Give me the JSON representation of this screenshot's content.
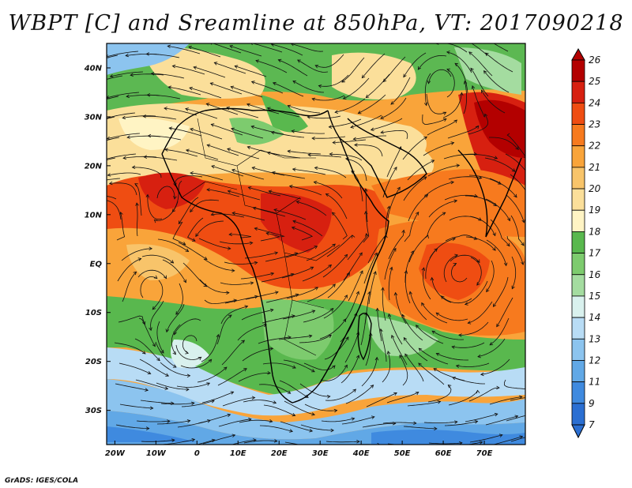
{
  "title": "WBPT [C] and Sreamline at 850hPa, VT: 2017090218",
  "credit": "GrADS: IGES/COLA",
  "axes": {
    "lon_labels": [
      "20W",
      "10W",
      "0",
      "10E",
      "20E",
      "30E",
      "40E",
      "50E",
      "60E",
      "70E"
    ],
    "lat_labels": [
      "40N",
      "30N",
      "20N",
      "10N",
      "EQ",
      "10S",
      "20S",
      "30S"
    ]
  },
  "colorbar": {
    "labels": [
      "26",
      "25",
      "24",
      "23",
      "22",
      "21",
      "20",
      "19",
      "18",
      "17",
      "16",
      "15",
      "14",
      "13",
      "12",
      "11",
      "9",
      "7"
    ],
    "colors": [
      "#b30000",
      "#d72010",
      "#ef4d12",
      "#f77a1e",
      "#f9a43a",
      "#f8c46a",
      "#fbdf9a",
      "#fff4c4",
      "#59b84e",
      "#7dcb6e",
      "#a4dca0",
      "#d9f1ee",
      "#b8dcf5",
      "#8cc4ef",
      "#61a8e6",
      "#3f8adf",
      "#2b6fd2"
    ]
  },
  "chart_data": {
    "type": "heatmap",
    "title": "WBPT [C] and Sreamline at 850hPa, VT: 2017090218",
    "variable": "WBPT [C]",
    "level": "850hPa",
    "valid_time": "2017090218",
    "lon_range": [
      -22,
      80
    ],
    "lat_range": [
      -37,
      45
    ],
    "colorbar_ticks": [
      26,
      25,
      24,
      23,
      22,
      21,
      20,
      19,
      18,
      17,
      16,
      15,
      14,
      13,
      12,
      11,
      9,
      7
    ],
    "overlay": "streamlines"
  }
}
